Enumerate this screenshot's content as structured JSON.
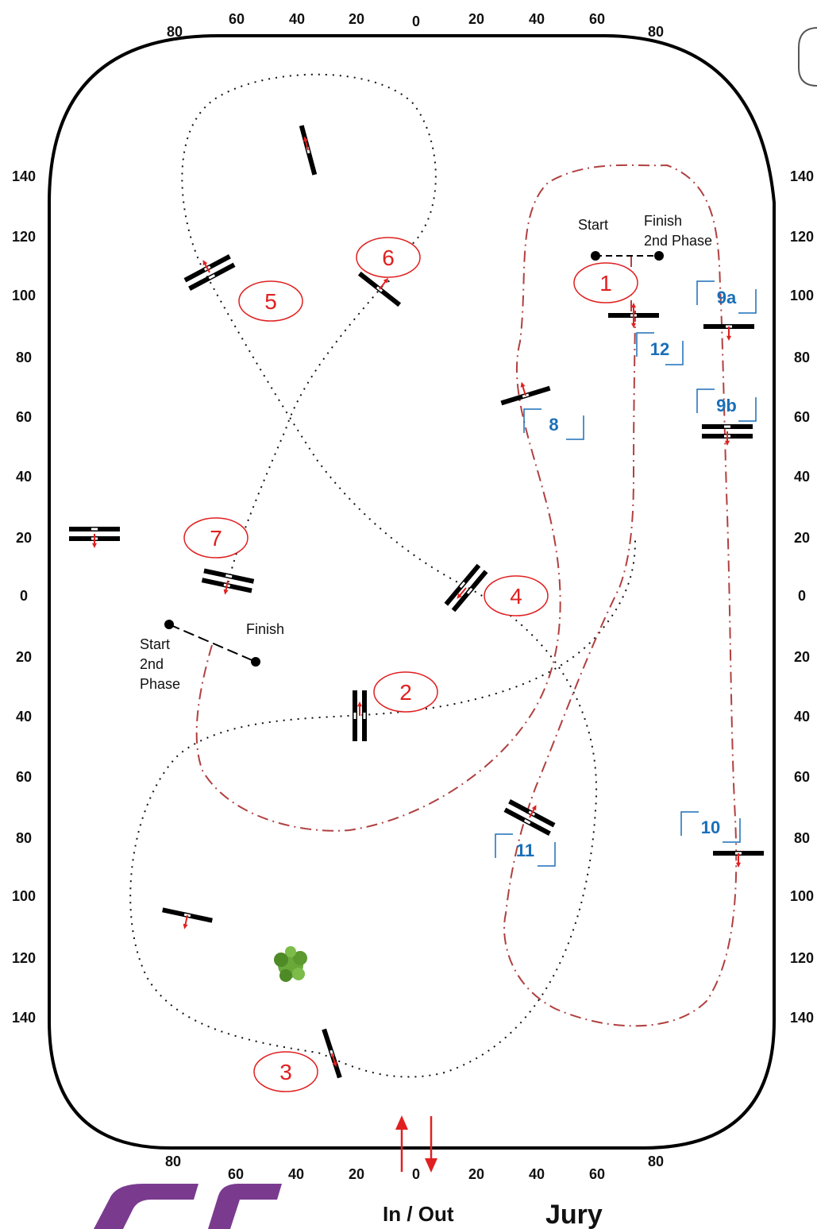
{
  "axis_top": [
    "80",
    "60",
    "40",
    "20",
    "0",
    "20",
    "40",
    "60",
    "80"
  ],
  "axis_bottom": [
    "80",
    "60",
    "40",
    "20",
    "0",
    "20",
    "40",
    "60",
    "80"
  ],
  "axis_left": [
    "140",
    "120",
    "100",
    "80",
    "60",
    "40",
    "20",
    "0",
    "20",
    "40",
    "60",
    "80",
    "100",
    "120",
    "140"
  ],
  "axis_right": [
    "140",
    "120",
    "100",
    "80",
    "60",
    "40",
    "20",
    "0",
    "20",
    "40",
    "60",
    "80",
    "100",
    "120",
    "140"
  ],
  "phase_one_numbers": [
    "1",
    "2",
    "3",
    "4",
    "5",
    "6",
    "7"
  ],
  "phase_two_numbers": [
    "8",
    "9a",
    "9b",
    "10",
    "11",
    "12"
  ],
  "labels": {
    "start": "Start",
    "finish_2nd_line1": "Finish",
    "finish_2nd_line2": "2nd Phase",
    "finish": "Finish",
    "start_2nd_line1": "Start",
    "start_2nd_line2": "2nd",
    "start_2nd_line3": "Phase",
    "in_out": "In / Out",
    "jury": "Jury"
  },
  "logo_text": "FEI",
  "colors": {
    "phase_one_number": "#e02020",
    "phase_two_number": "#1a6fb8",
    "phase_two_track": "#b04040",
    "direction_arrow": "#e02020",
    "logo": "#7a3b8f"
  }
}
